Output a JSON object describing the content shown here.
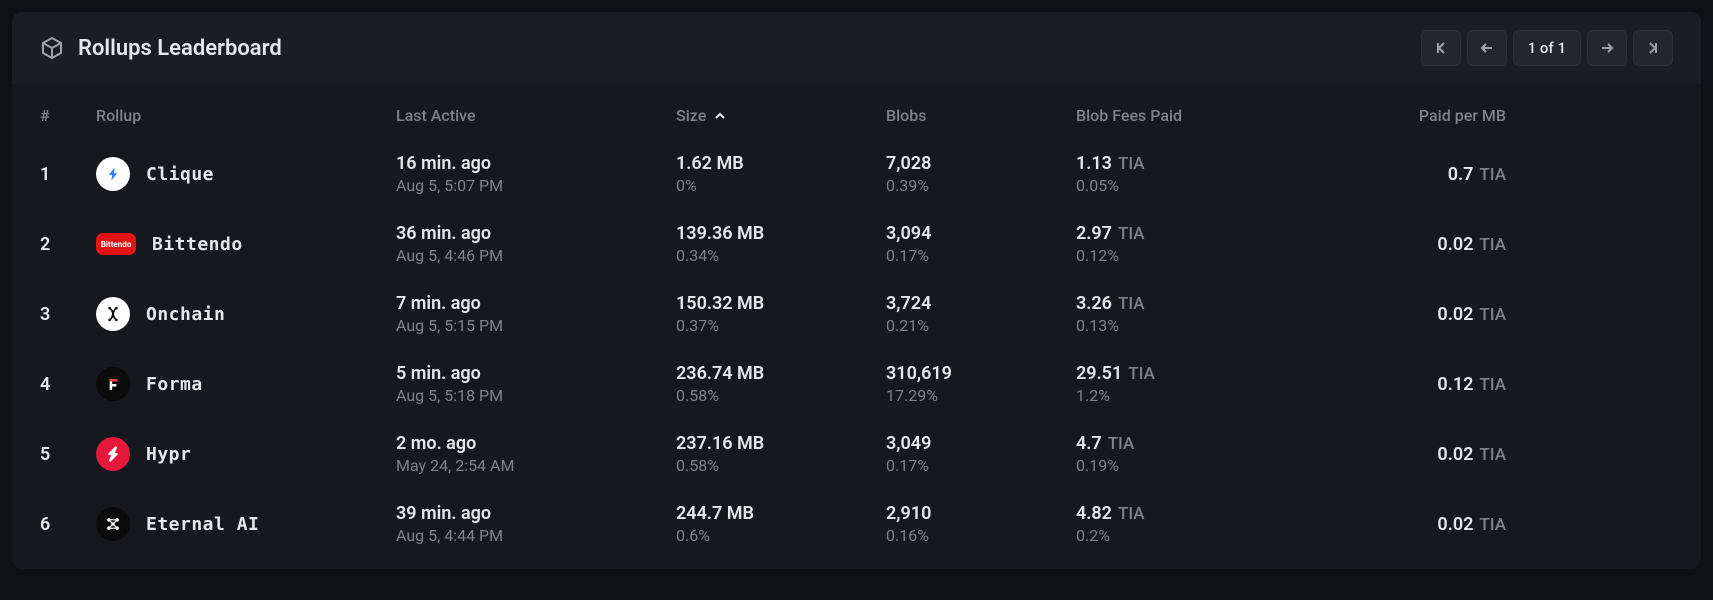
{
  "header": {
    "title": "Rollups Leaderboard",
    "page_label": "1 of 1"
  },
  "columns": {
    "rank": "#",
    "rollup": "Rollup",
    "last_active": "Last Active",
    "size": "Size",
    "blobs": "Blobs",
    "blob_fees": "Blob Fees Paid",
    "paid_per_mb": "Paid per MB"
  },
  "unit": "TIA",
  "rows": [
    {
      "rank": "1",
      "name": "Clique",
      "logo": {
        "shape": "circle",
        "bg": "#ffffff",
        "fg": "#2f7fff",
        "glyph": "bolt"
      },
      "last_active": "16 min. ago",
      "last_active_ts": "Aug 5, 5:07 PM",
      "size": "1.62 MB",
      "size_pct": "0%",
      "blobs": "7,028",
      "blobs_pct": "0.39%",
      "fees": "1.13",
      "fees_pct": "0.05%",
      "paid_per_mb": "0.7"
    },
    {
      "rank": "2",
      "name": "Bittendo",
      "logo": {
        "shape": "pill",
        "bg": "#e11313",
        "fg": "#ffffff",
        "glyph": "text",
        "text": "Bittendo"
      },
      "last_active": "36 min. ago",
      "last_active_ts": "Aug 5, 4:46 PM",
      "size": "139.36 MB",
      "size_pct": "0.34%",
      "blobs": "3,094",
      "blobs_pct": "0.17%",
      "fees": "2.97",
      "fees_pct": "0.12%",
      "paid_per_mb": "0.02"
    },
    {
      "rank": "3",
      "name": "Onchain",
      "logo": {
        "shape": "circle",
        "bg": "#ffffff",
        "fg": "#0b0b0b",
        "glyph": "dna"
      },
      "last_active": "7 min. ago",
      "last_active_ts": "Aug 5, 5:15 PM",
      "size": "150.32 MB",
      "size_pct": "0.37%",
      "blobs": "3,724",
      "blobs_pct": "0.21%",
      "fees": "3.26",
      "fees_pct": "0.13%",
      "paid_per_mb": "0.02"
    },
    {
      "rank": "4",
      "name": "Forma",
      "logo": {
        "shape": "circle",
        "bg": "#0b0b0b",
        "fg": "#ff3b3b",
        "glyph": "F"
      },
      "last_active": "5 min. ago",
      "last_active_ts": "Aug 5, 5:18 PM",
      "size": "236.74 MB",
      "size_pct": "0.58%",
      "blobs": "310,619",
      "blobs_pct": "17.29%",
      "fees": "29.51",
      "fees_pct": "1.2%",
      "paid_per_mb": "0.12"
    },
    {
      "rank": "5",
      "name": "Hypr",
      "logo": {
        "shape": "circle",
        "bg": "#e5173a",
        "fg": "#ffffff",
        "glyph": "bolt2"
      },
      "last_active": "2 mo. ago",
      "last_active_ts": "May 24, 2:54 AM",
      "size": "237.16 MB",
      "size_pct": "0.58%",
      "blobs": "3,049",
      "blobs_pct": "0.17%",
      "fees": "4.7",
      "fees_pct": "0.19%",
      "paid_per_mb": "0.02"
    },
    {
      "rank": "6",
      "name": "Eternal AI",
      "logo": {
        "shape": "circle",
        "bg": "#0b0b0b",
        "fg": "#ffffff",
        "glyph": "net"
      },
      "last_active": "39 min. ago",
      "last_active_ts": "Aug 5, 4:44 PM",
      "size": "244.7 MB",
      "size_pct": "0.6%",
      "blobs": "2,910",
      "blobs_pct": "0.16%",
      "fees": "4.82",
      "fees_pct": "0.2%",
      "paid_per_mb": "0.02"
    }
  ],
  "colors": {
    "panel_bg": "#16181d",
    "header_bg": "#1a1d23",
    "text_primary": "#e5e7eb",
    "text_muted": "#7d828c",
    "btn_bg": "#23262d",
    "btn_border": "#2d3038"
  }
}
